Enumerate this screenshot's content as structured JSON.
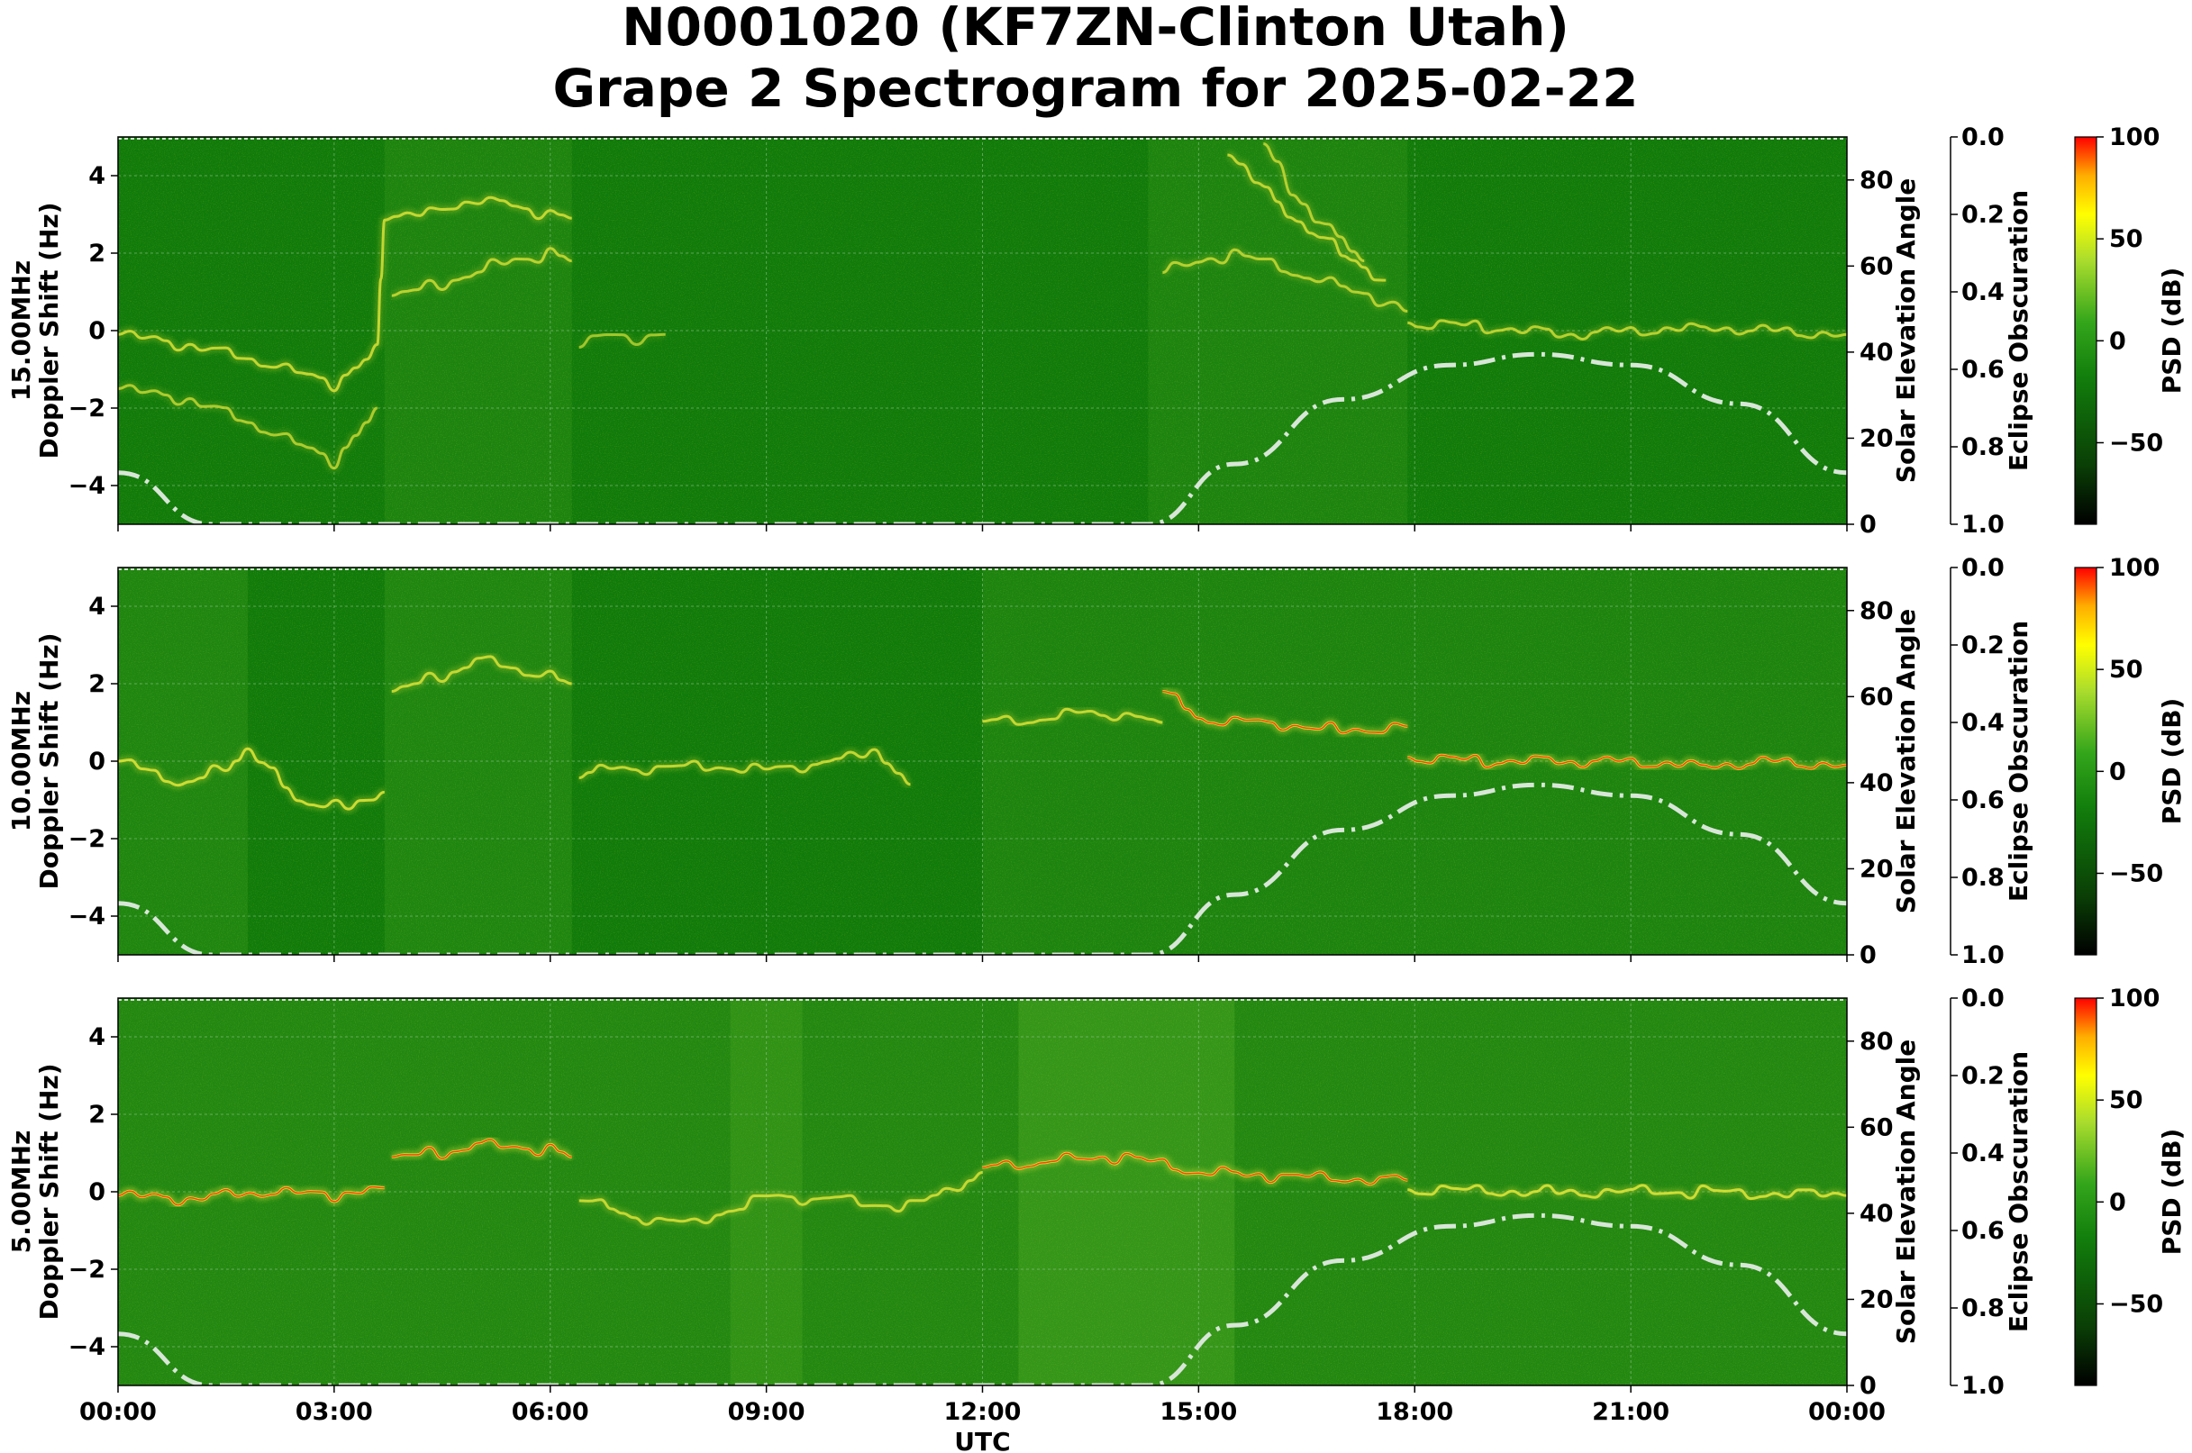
{
  "title_line1": "N0001020 (KF7ZN-Clinton Utah)",
  "title_line2": "Grape 2 Spectrogram for 2025-02-22",
  "colors": {
    "background_green": "#107a0a",
    "trace_yellow": "#e4e63a",
    "peak_red": "#ff2a00",
    "solar_curve": "#d8e6d8",
    "colorbar": [
      "#000000",
      "#0a3e06",
      "#127e0c",
      "#33a51b",
      "#a9dc2d",
      "#ffff00",
      "#ffae00",
      "#ff0000"
    ]
  },
  "chart_data": [
    {
      "type": "heatmap",
      "panel": "15.00MHz",
      "ylabel_line1": "15.00MHz",
      "ylabel_line2": "Doppler Shift (Hz)",
      "ylim": [
        -5,
        5
      ],
      "yticks": [
        -4,
        -2,
        0,
        2,
        4
      ],
      "ytick_labels": [
        "−4",
        "−2",
        "0",
        "2",
        "4"
      ],
      "xlim_hours": [
        0,
        24
      ],
      "xticks_hours": [
        0,
        3,
        6,
        9,
        12,
        15,
        18,
        21,
        24
      ],
      "right_axis_label": "Solar Elevation Angle",
      "right_axis_ylim": [
        0,
        90
      ],
      "right_axis_ticks": [
        0,
        20,
        40,
        60,
        80
      ],
      "eclipse_label": "Eclipse Obscuration",
      "eclipse_ticks": [
        "0.0",
        "0.2",
        "0.4",
        "0.6",
        "0.8",
        "1.0"
      ],
      "colorbar_label": "PSD (dB)",
      "colorbar_range": [
        -90,
        100
      ],
      "colorbar_ticks": [
        100,
        50,
        0,
        -50
      ],
      "colorbar_tick_labels": [
        "100",
        "50",
        "0",
        "−50"
      ],
      "solar_elevation": {
        "hours": [
          0,
          1.3,
          14.3,
          15.5,
          17,
          18.5,
          19.7,
          21,
          22.5,
          24
        ],
        "values": [
          12,
          0,
          0,
          14,
          29,
          37,
          39.5,
          37,
          28,
          12
        ]
      },
      "traces": [
        {
          "name": "main",
          "hours": [
            0,
            1,
            2,
            3,
            3.6,
            3.7,
            4.5,
            5,
            5.5,
            6,
            6.3
          ],
          "values": [
            -0.1,
            -0.4,
            -0.8,
            -1.4,
            -0.5,
            3.0,
            3.1,
            3.4,
            3.2,
            3.0,
            2.9
          ],
          "strength": 0.6
        },
        {
          "name": "lower",
          "hours": [
            0,
            1,
            2,
            3,
            3.6
          ],
          "values": [
            -1.5,
            -1.8,
            -2.5,
            -3.4,
            -2.0
          ],
          "strength": 0.4
        },
        {
          "name": "mid",
          "hours": [
            3.8,
            4.5,
            5.2,
            6,
            6.3
          ],
          "values": [
            0.9,
            1.2,
            1.7,
            2.0,
            1.8
          ],
          "strength": 0.5
        },
        {
          "name": "fan1",
          "hours": [
            14.5,
            15.5,
            16.5,
            17.5,
            17.9
          ],
          "values": [
            1.5,
            2.0,
            1.4,
            0.8,
            0.5
          ],
          "strength": 0.45
        },
        {
          "name": "fan2",
          "hours": [
            15.4,
            15.8,
            16.4,
            17.0,
            17.6
          ],
          "values": [
            4.7,
            3.8,
            2.8,
            2.0,
            1.3
          ],
          "strength": 0.55
        },
        {
          "name": "fan3",
          "hours": [
            15.9,
            16.3,
            16.8,
            17.3
          ],
          "values": [
            4.8,
            3.6,
            2.6,
            1.8
          ],
          "strength": 0.45
        },
        {
          "name": "evening",
          "hours": [
            17.9,
            19,
            20,
            21,
            22,
            23,
            24
          ],
          "values": [
            0.2,
            0.1,
            -0.1,
            0.0,
            0.1,
            0.0,
            -0.1
          ],
          "strength": 0.5
        },
        {
          "name": "small",
          "hours": [
            6.4,
            6.8,
            7.2,
            7.6
          ],
          "values": [
            -0.3,
            -0.1,
            -0.2,
            -0.1
          ],
          "strength": 0.3
        }
      ],
      "bright_regions": [
        [
          3.7,
          6.3,
          0.04
        ],
        [
          14.3,
          17.9,
          0.04
        ]
      ]
    },
    {
      "type": "heatmap",
      "panel": "10.00MHz",
      "ylabel_line1": "10.00MHz",
      "ylabel_line2": "Doppler Shift (Hz)",
      "ylim": [
        -5,
        5
      ],
      "yticks": [
        -4,
        -2,
        0,
        2,
        4
      ],
      "ytick_labels": [
        "−4",
        "−2",
        "0",
        "2",
        "4"
      ],
      "xlim_hours": [
        0,
        24
      ],
      "xticks_hours": [
        0,
        3,
        6,
        9,
        12,
        15,
        18,
        21,
        24
      ],
      "right_axis_label": "Solar Elevation Angle",
      "right_axis_ylim": [
        0,
        90
      ],
      "right_axis_ticks": [
        0,
        20,
        40,
        60,
        80
      ],
      "eclipse_label": "Eclipse Obscuration",
      "eclipse_ticks": [
        "0.0",
        "0.2",
        "0.4",
        "0.6",
        "0.8",
        "1.0"
      ],
      "colorbar_label": "PSD (dB)",
      "colorbar_range": [
        -90,
        100
      ],
      "colorbar_ticks": [
        100,
        50,
        0,
        -50
      ],
      "colorbar_tick_labels": [
        "100",
        "50",
        "0",
        "−50"
      ],
      "solar_elevation": {
        "hours": [
          0,
          1.3,
          14.3,
          15.5,
          17,
          18.5,
          19.7,
          21,
          22.5,
          24
        ],
        "values": [
          12,
          0,
          0,
          14,
          29,
          37,
          39.5,
          37,
          28,
          12
        ]
      },
      "traces": [
        {
          "name": "night",
          "hours": [
            0,
            0.5,
            1,
            1.5,
            1.8,
            2.5,
            3.2,
            3.7
          ],
          "values": [
            0.0,
            -0.3,
            -0.6,
            -0.1,
            0.3,
            -1.0,
            -1.2,
            -0.8
          ],
          "strength": 0.7
        },
        {
          "name": "dawn",
          "hours": [
            3.8,
            4.5,
            5,
            5.5,
            6,
            6.3
          ],
          "values": [
            1.8,
            2.2,
            2.6,
            2.4,
            2.2,
            2.0
          ],
          "strength": 0.6
        },
        {
          "name": "day1",
          "hours": [
            6.4,
            7,
            8,
            9,
            10,
            10.5,
            11
          ],
          "values": [
            -0.3,
            -0.2,
            -0.1,
            -0.2,
            0.0,
            0.3,
            -0.6
          ],
          "strength": 0.6
        },
        {
          "name": "day2",
          "hours": [
            12,
            13,
            13.5,
            14.5
          ],
          "values": [
            1.0,
            1.1,
            1.3,
            1.0
          ],
          "strength": 0.6
        },
        {
          "name": "day3",
          "hours": [
            14.5,
            15,
            16,
            17,
            17.9
          ],
          "values": [
            1.8,
            1.1,
            1.0,
            0.8,
            0.9
          ],
          "strength": 0.9
        },
        {
          "name": "evening",
          "hours": [
            17.9,
            19,
            20,
            21,
            22,
            23,
            24
          ],
          "values": [
            0.1,
            0.0,
            0.0,
            0.0,
            -0.1,
            0.0,
            -0.1
          ],
          "strength": 0.85
        }
      ],
      "bright_regions": [
        [
          0,
          1.8,
          0.05
        ],
        [
          3.7,
          6.3,
          0.05
        ],
        [
          12,
          24,
          0.04
        ]
      ]
    },
    {
      "type": "heatmap",
      "panel": "5.00MHz",
      "ylabel_line1": "5.00MHz",
      "ylabel_line2": "Doppler Shift (Hz)",
      "ylim": [
        -5,
        5
      ],
      "yticks": [
        -4,
        -2,
        0,
        2,
        4
      ],
      "ytick_labels": [
        "−4",
        "−2",
        "0",
        "2",
        "4"
      ],
      "xlim_hours": [
        0,
        24
      ],
      "xticks_hours": [
        0,
        3,
        6,
        9,
        12,
        15,
        18,
        21,
        24
      ],
      "xtick_labels": [
        "00:00",
        "03:00",
        "06:00",
        "09:00",
        "12:00",
        "15:00",
        "18:00",
        "21:00",
        "00:00"
      ],
      "xlabel": "UTC",
      "right_axis_label": "Solar Elevation Angle",
      "right_axis_ylim": [
        0,
        90
      ],
      "right_axis_ticks": [
        0,
        20,
        40,
        60,
        80
      ],
      "eclipse_label": "Eclipse Obscuration",
      "eclipse_ticks": [
        "0.0",
        "0.2",
        "0.4",
        "0.6",
        "0.8",
        "1.0"
      ],
      "colorbar_label": "PSD (dB)",
      "colorbar_range": [
        -90,
        100
      ],
      "colorbar_ticks": [
        100,
        50,
        0,
        -50
      ],
      "colorbar_tick_labels": [
        "100",
        "50",
        "0",
        "−50"
      ],
      "solar_elevation": {
        "hours": [
          0,
          1.3,
          14.3,
          15.5,
          17,
          18.5,
          19.7,
          21,
          22.5,
          24
        ],
        "values": [
          12,
          0,
          0,
          14,
          29,
          37,
          39.5,
          37,
          28,
          12
        ]
      },
      "traces": [
        {
          "name": "night",
          "hours": [
            0,
            1,
            2,
            3,
            3.7
          ],
          "values": [
            -0.1,
            -0.2,
            0.0,
            -0.1,
            0.1
          ],
          "strength": 0.9
        },
        {
          "name": "dawn",
          "hours": [
            3.8,
            4.5,
            5,
            6,
            6.3
          ],
          "values": [
            0.9,
            1.0,
            1.2,
            1.1,
            0.9
          ],
          "strength": 0.9
        },
        {
          "name": "morning",
          "hours": [
            6.4,
            7,
            8,
            9,
            10,
            11,
            12
          ],
          "values": [
            -0.1,
            -0.6,
            -0.8,
            -0.1,
            -0.2,
            -0.4,
            0.5
          ],
          "strength": 0.6
        },
        {
          "name": "midday",
          "hours": [
            12,
            13,
            14,
            15,
            16,
            17.9
          ],
          "values": [
            0.6,
            0.8,
            0.9,
            0.5,
            0.4,
            0.3
          ],
          "strength": 0.85
        },
        {
          "name": "evening",
          "hours": [
            17.9,
            20,
            22,
            24
          ],
          "values": [
            0.05,
            0.0,
            0.0,
            -0.1
          ],
          "strength": 0.7
        }
      ],
      "bright_regions": [
        [
          0,
          24,
          0.06
        ],
        [
          12.5,
          15.5,
          0.08
        ],
        [
          8.5,
          9.5,
          0.06
        ]
      ]
    }
  ]
}
